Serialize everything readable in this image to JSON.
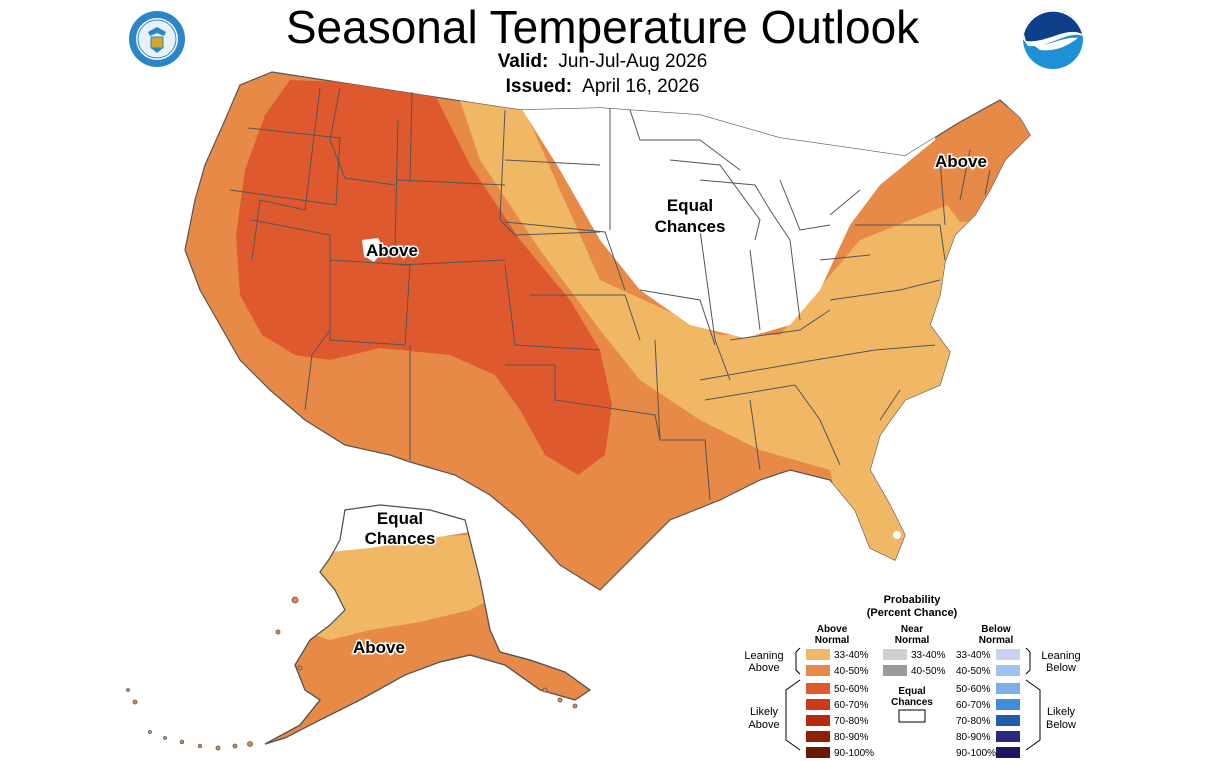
{
  "header": {
    "title": "Seasonal Temperature Outlook",
    "valid_label": "Valid:",
    "valid_value": "Jun-Jul-Aug 2026",
    "issued_label": "Issued:",
    "issued_value": "April 16, 2026"
  },
  "map_labels": {
    "west_above": "Above",
    "northeast_above": "Above",
    "central_equal_1": "Equal",
    "central_equal_2": "Chances",
    "alaska_equal_1": "Equal",
    "alaska_equal_2": "Chances",
    "alaska_above": "Above"
  },
  "legend": {
    "title_1": "Probability",
    "title_2": "(Percent Chance)",
    "above_head_1": "Above",
    "above_head_2": "Normal",
    "near_head_1": "Near",
    "near_head_2": "Normal",
    "below_head_1": "Below",
    "below_head_2": "Normal",
    "leaning_above_1": "Leaning",
    "leaning_above_2": "Above",
    "likely_above_1": "Likely",
    "likely_above_2": "Above",
    "leaning_below_1": "Leaning",
    "leaning_below_2": "Below",
    "likely_below_1": "Likely",
    "likely_below_2": "Below",
    "equal_1": "Equal",
    "equal_2": "Chances",
    "above": [
      {
        "label": "33-40%",
        "color": "#f0b865"
      },
      {
        "label": "40-50%",
        "color": "#e88a47"
      },
      {
        "label": "50-60%",
        "color": "#de5a2e"
      },
      {
        "label": "60-70%",
        "color": "#cf3a1c"
      },
      {
        "label": "70-80%",
        "color": "#b22a10"
      },
      {
        "label": "80-90%",
        "color": "#8f2008"
      },
      {
        "label": "90-100%",
        "color": "#6b1a06"
      }
    ],
    "near": [
      {
        "label": "33-40%",
        "color": "#cfcfcf"
      },
      {
        "label": "40-50%",
        "color": "#9a9a9a"
      }
    ],
    "below": [
      {
        "label": "33-40%",
        "color": "#c6d3ef"
      },
      {
        "label": "40-50%",
        "color": "#a3c2ea"
      },
      {
        "label": "50-60%",
        "color": "#7bb0e6"
      },
      {
        "label": "60-70%",
        "color": "#3f8fd6"
      },
      {
        "label": "70-80%",
        "color": "#1f5fa8"
      },
      {
        "label": "80-90%",
        "color": "#2a2882"
      },
      {
        "label": "90-100%",
        "color": "#1d1660"
      }
    ]
  },
  "colors": {
    "equal_chances": "#ffffff",
    "state_border": "#555555",
    "noaa_blue": "#1f8fd6",
    "doc_seal_blue": "#2b86c7"
  }
}
